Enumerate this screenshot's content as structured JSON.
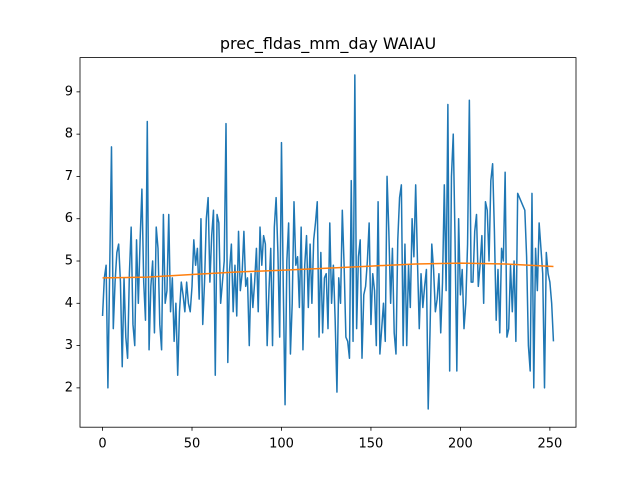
{
  "chart_data": {
    "type": "line",
    "title": "prec_fldas_mm_day WAIAU",
    "x": [
      0,
      1,
      2,
      3,
      4,
      5,
      6,
      7,
      8,
      9,
      10,
      11,
      12,
      13,
      14,
      15,
      16,
      17,
      18,
      19,
      20,
      21,
      22,
      23,
      24,
      25,
      26,
      27,
      28,
      29,
      30,
      31,
      32,
      33,
      34,
      35,
      36,
      37,
      38,
      39,
      40,
      41,
      42,
      43,
      44,
      45,
      46,
      47,
      48,
      49,
      50,
      51,
      52,
      53,
      54,
      55,
      56,
      57,
      58,
      59,
      60,
      61,
      62,
      63,
      64,
      65,
      66,
      67,
      68,
      69,
      70,
      71,
      72,
      73,
      74,
      75,
      76,
      77,
      78,
      79,
      80,
      81,
      82,
      83,
      84,
      85,
      86,
      87,
      88,
      89,
      90,
      91,
      92,
      93,
      94,
      95,
      96,
      97,
      98,
      99,
      100,
      101,
      102,
      103,
      104,
      105,
      106,
      107,
      108,
      109,
      110,
      111,
      112,
      113,
      114,
      115,
      116,
      117,
      118,
      119,
      120,
      121,
      122,
      123,
      124,
      125,
      126,
      127,
      128,
      129,
      130,
      131,
      132,
      133,
      134,
      135,
      136,
      137,
      138,
      139,
      140,
      141,
      142,
      143,
      144,
      145,
      146,
      147,
      148,
      149,
      150,
      151,
      152,
      153,
      154,
      155,
      156,
      157,
      158,
      159,
      160,
      161,
      162,
      163,
      164,
      165,
      166,
      167,
      168,
      169,
      170,
      171,
      172,
      173,
      174,
      175,
      176,
      177,
      178,
      179,
      180,
      181,
      182,
      183,
      184,
      185,
      186,
      187,
      188,
      189,
      190,
      191,
      192,
      193,
      194,
      195,
      196,
      197,
      198,
      199,
      200,
      201,
      202,
      203,
      204,
      205,
      206,
      207,
      208,
      209,
      210,
      211,
      212,
      213,
      214,
      215,
      216,
      217,
      218,
      219,
      220,
      221,
      222,
      223,
      224,
      225,
      226,
      227,
      228,
      229,
      230,
      231,
      232,
      233,
      234,
      235,
      236,
      237,
      238,
      239,
      240,
      241,
      242,
      243,
      244,
      245,
      246,
      247,
      248,
      249,
      250,
      251,
      252
    ],
    "series": [
      {
        "color": "#1f77b4",
        "values": [
          3.7,
          4.6,
          4.9,
          2.0,
          4.8,
          7.7,
          3.4,
          4.5,
          5.2,
          5.4,
          4.5,
          2.5,
          4.6,
          3.2,
          2.7,
          4.7,
          5.8,
          3.5,
          3.0,
          5.5,
          4.0,
          5.5,
          6.7,
          4.5,
          3.6,
          8.3,
          2.9,
          4.4,
          5.0,
          3.3,
          5.8,
          5.3,
          3.5,
          2.9,
          6.1,
          4.0,
          4.3,
          6.1,
          3.8,
          4.6,
          3.1,
          4.0,
          2.3,
          3.8,
          4.5,
          4.2,
          3.8,
          4.5,
          4.0,
          3.8,
          4.4,
          5.5,
          4.9,
          5.3,
          4.1,
          6.0,
          3.5,
          4.5,
          6.0,
          6.5,
          4.5,
          5.6,
          6.2,
          2.3,
          6.1,
          5.9,
          4.0,
          4.5,
          5.0,
          8.25,
          2.6,
          4.8,
          5.4,
          3.8,
          4.9,
          3.7,
          5.7,
          4.3,
          4.7,
          5.7,
          4.4,
          4.6,
          3.0,
          4.7,
          3.9,
          4.5,
          5.3,
          3.8,
          5.8,
          4.9,
          5.6,
          5.4,
          3.0,
          4.3,
          5.3,
          3.0,
          5.8,
          6.5,
          5.2,
          3.2,
          7.8,
          4.4,
          1.6,
          5.0,
          5.9,
          2.8,
          4.0,
          6.4,
          4.9,
          5.1,
          3.9,
          5.8,
          2.9,
          4.9,
          5.6,
          3.9,
          5.4,
          4.0,
          5.5,
          5.9,
          6.4,
          3.2,
          5.2,
          3.3,
          4.6,
          4.7,
          3.4,
          5.9,
          4.0,
          4.9,
          3.6,
          1.9,
          4.6,
          4.0,
          6.2,
          4.9,
          3.2,
          3.1,
          2.7,
          6.9,
          3.1,
          9.4,
          3.4,
          5.1,
          5.5,
          2.7,
          4.2,
          4.4,
          5.0,
          5.9,
          3.5,
          4.7,
          4.3,
          3.0,
          6.4,
          2.8,
          3.4,
          4.0,
          3.1,
          7.0,
          5.7,
          4.0,
          5.3,
          3.3,
          2.8,
          5.5,
          6.5,
          6.8,
          3.0,
          5.4,
          3.0,
          4.9,
          3.9,
          6.0,
          5.1,
          6.8,
          5.0,
          3.4,
          4.7,
          3.9,
          4.4,
          4.8,
          1.5,
          3.3,
          5.4,
          4.8,
          3.8,
          4.1,
          4.7,
          3.3,
          4.5,
          6.8,
          4.3,
          8.7,
          2.4,
          7.0,
          8.0,
          5.5,
          2.4,
          6.0,
          4.2,
          4.8,
          3.4,
          4.0,
          5.4,
          8.8,
          4.5,
          4.5,
          5.7,
          6.1,
          4.4,
          4.9,
          5.6,
          4.0,
          6.4,
          6.2,
          5.0,
          6.9,
          7.3,
          5.7,
          3.6,
          4.8,
          3.3,
          5.3,
          5.0,
          7.1,
          3.2,
          3.4,
          4.9,
          3.8,
          5.0,
          3.1,
          6.6,
          6.5,
          6.4,
          6.3,
          6.2,
          5.1,
          3.0,
          2.4,
          6.6,
          2.0,
          5.3,
          4.3,
          5.9,
          5.3,
          4.7,
          2.0,
          5.2,
          4.7,
          4.5,
          4.0,
          3.1
        ]
      },
      {
        "color": "#ff7f0e",
        "x": [
          0,
          25,
          50,
          75,
          100,
          125,
          150,
          175,
          200,
          225,
          252
        ],
        "values": [
          4.6,
          4.62,
          4.68,
          4.74,
          4.78,
          4.83,
          4.88,
          4.93,
          4.95,
          4.93,
          4.87
        ]
      }
    ],
    "xlim": [
      -12.6,
      264.6
    ],
    "ylim": [
      1.07,
      9.81
    ],
    "xticks": [
      0,
      50,
      100,
      150,
      200,
      250
    ],
    "yticks": [
      2,
      3,
      4,
      5,
      6,
      7,
      8,
      9
    ],
    "grid": false
  }
}
